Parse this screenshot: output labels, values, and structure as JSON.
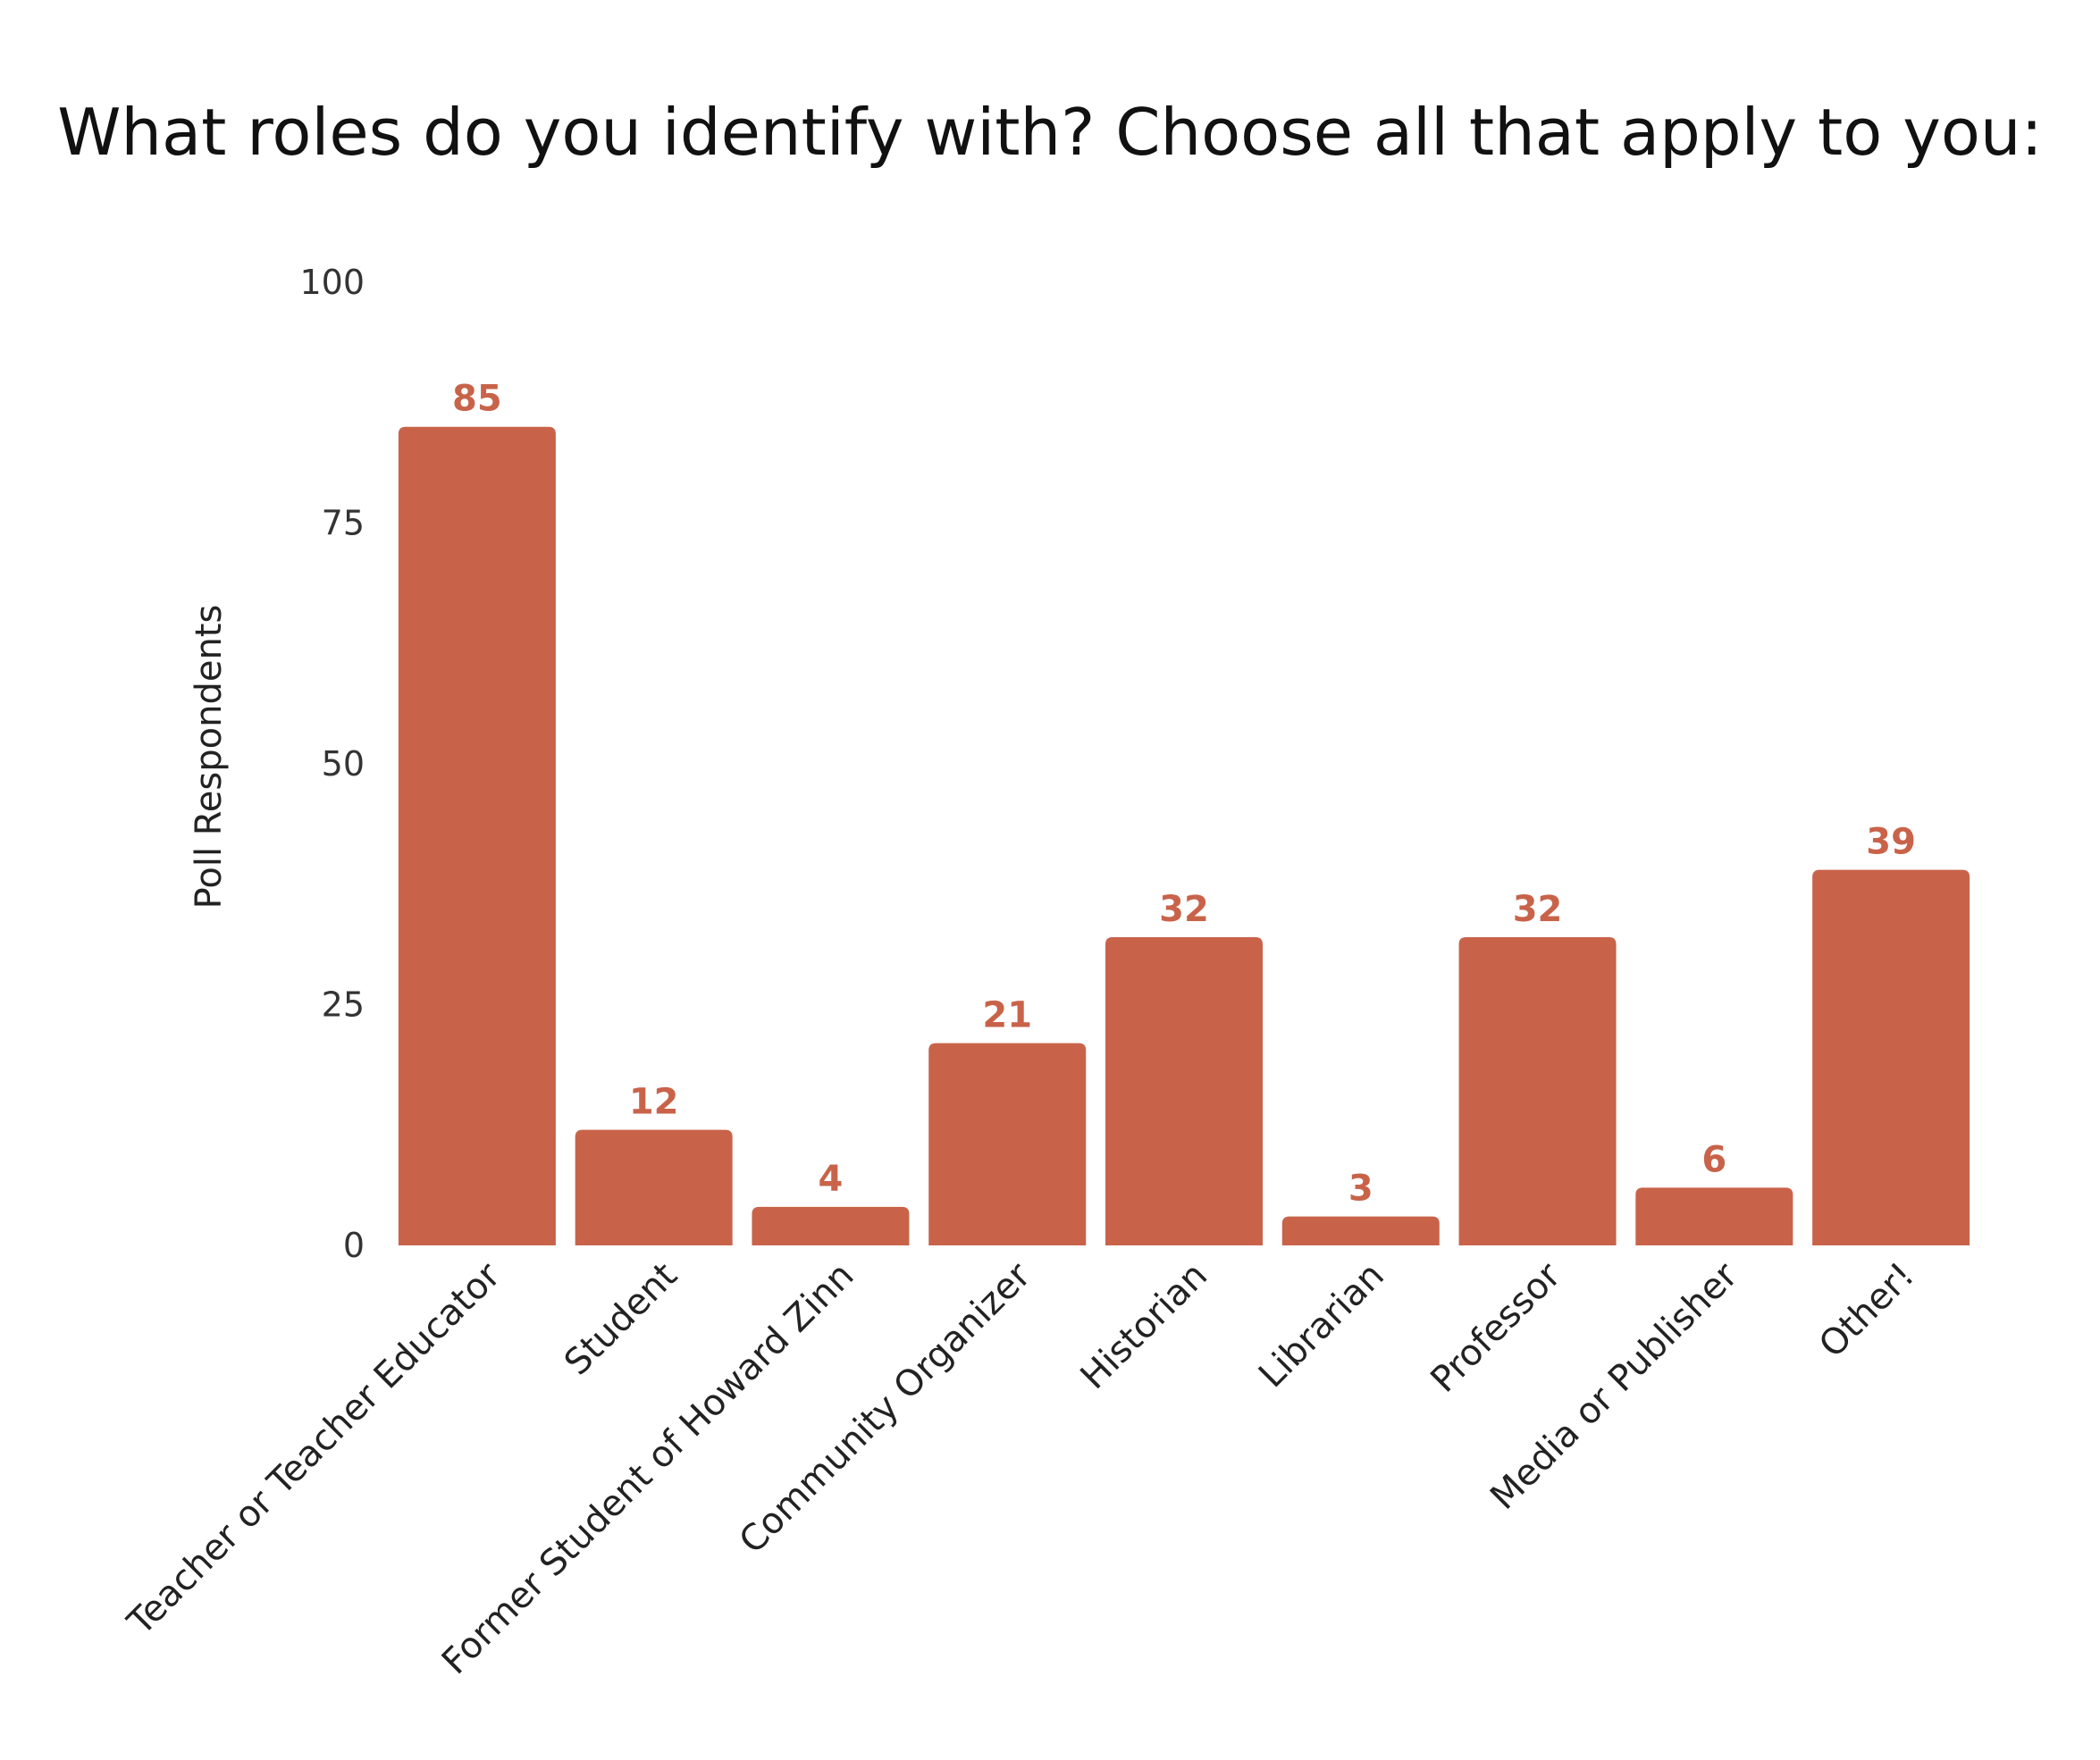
{
  "chart_data": {
    "type": "bar",
    "title": "What roles do you identify with? Choose all that apply to you:",
    "xlabel": "",
    "ylabel": "Poll Respondents",
    "ylim": [
      0,
      100
    ],
    "yticks": [
      0,
      25,
      50,
      75,
      100
    ],
    "grid": false,
    "categories": [
      "Teacher or Teacher Educator",
      "Student",
      "Former Student of Howard Zinn",
      "Community Organizer",
      "Historian",
      "Librarian",
      "Professor",
      "Media or Publisher",
      "Other!"
    ],
    "values": [
      85,
      12,
      4,
      21,
      32,
      3,
      32,
      6,
      39
    ],
    "colors": {
      "bar": "#c8634a",
      "label": "#c8634a"
    }
  }
}
